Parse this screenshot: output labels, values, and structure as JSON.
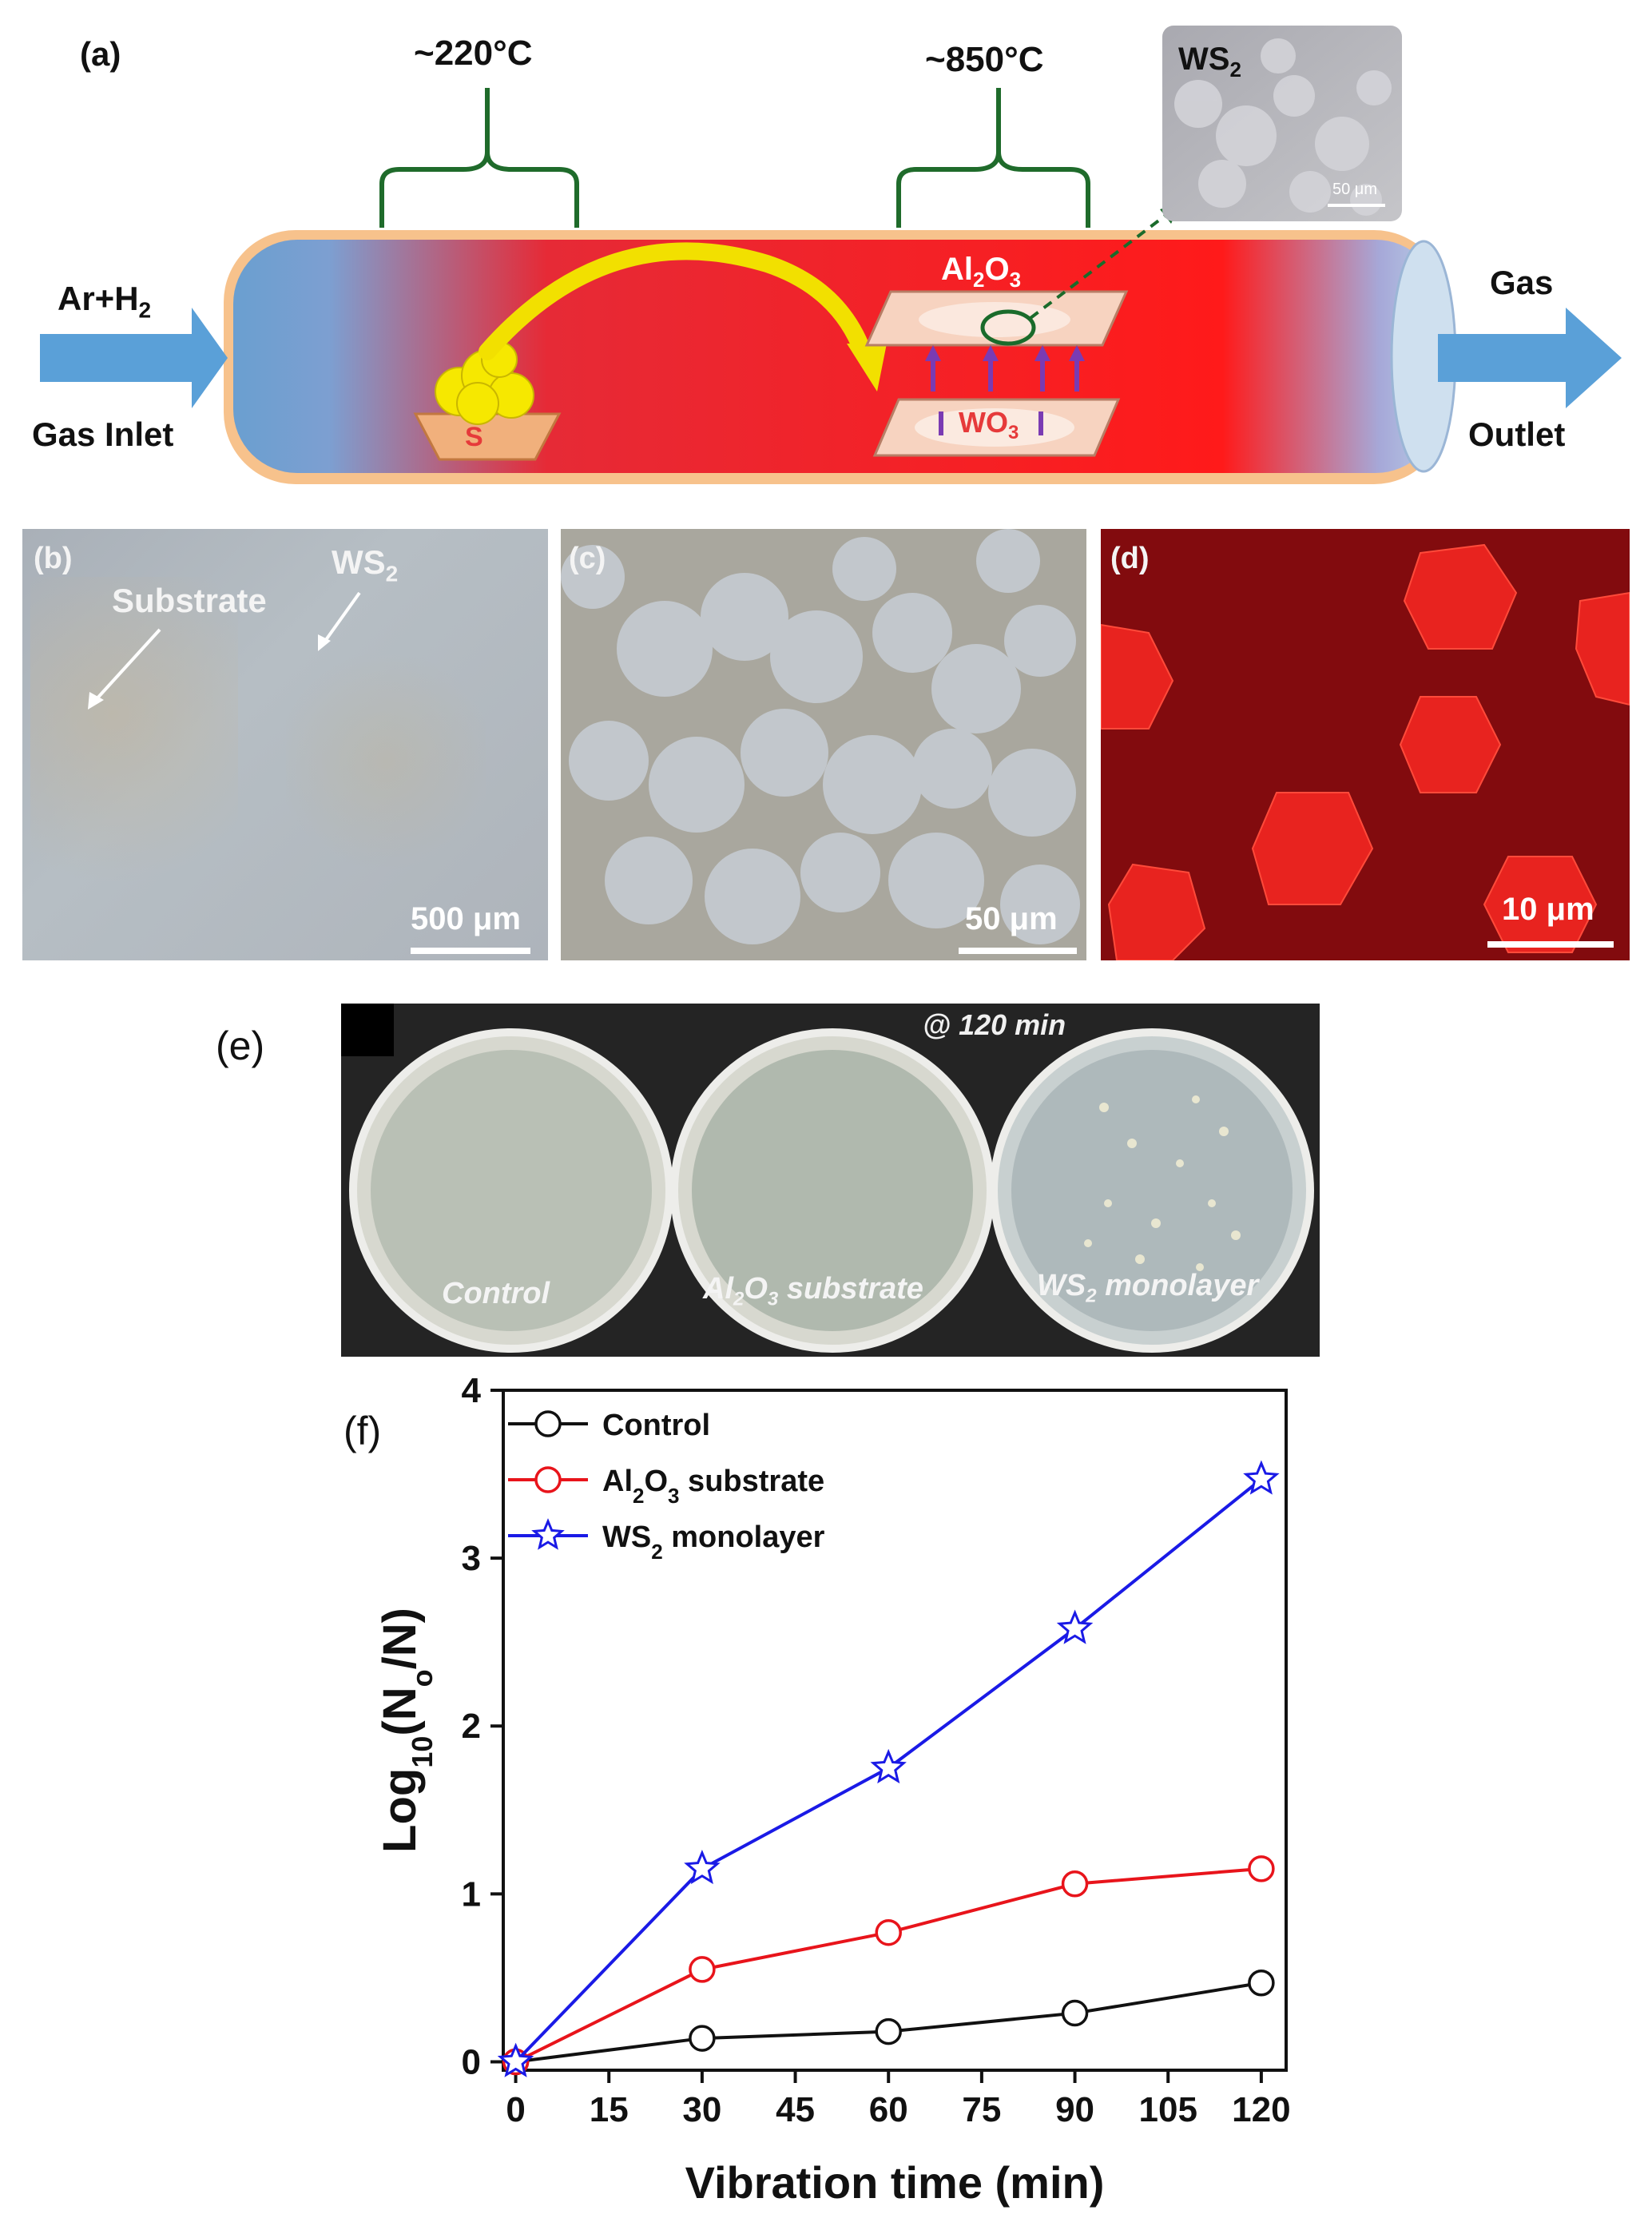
{
  "panel_a": {
    "label": "(a)",
    "temp_left": "~220°C",
    "temp_right": "~850°C",
    "inset_label": "WS",
    "inset_sub": "2",
    "inset_scale": "50 μm",
    "gas_in_top": "Ar+H",
    "gas_in_top_sub": "2",
    "gas_in_bottom": "Gas Inlet",
    "gas_out_top": "Gas",
    "gas_out_bottom": "Outlet",
    "boat_label": "S",
    "top_plate": "Al",
    "top_plate_sub1": "2",
    "top_plate_mid": "O",
    "top_plate_sub2": "3",
    "bottom_plate": "WO",
    "bottom_plate_sub": "3"
  },
  "panel_b": {
    "label": "(b)",
    "substrate": "Substrate",
    "ws2": "WS",
    "ws2_sub": "2",
    "scale": "500 μm"
  },
  "panel_c": {
    "label": "(c)",
    "scale": "50 μm"
  },
  "panel_d": {
    "label": "(d)",
    "scale": "10 μm"
  },
  "panel_e": {
    "label": "(e)",
    "time": "@ 120 min",
    "dish1": "Control",
    "dish2_a": "Al",
    "dish2_sub1": "2",
    "dish2_b": "O",
    "dish2_sub2": "3",
    "dish2_c": " substrate",
    "dish3_a": "WS",
    "dish3_sub": "2",
    "dish3_b": " monolayer"
  },
  "panel_f": {
    "label": "(f)"
  },
  "chart_data": {
    "type": "line",
    "x": [
      0,
      30,
      60,
      90,
      120
    ],
    "xlabel": "Vibration time (min)",
    "ylabel": "Log10(No/N)",
    "xlim": [
      -2,
      124
    ],
    "ylim": [
      -0.05,
      4
    ],
    "xticks": [
      0,
      15,
      30,
      45,
      60,
      75,
      90,
      105,
      120
    ],
    "yticks": [
      0,
      1,
      2,
      3,
      4
    ],
    "legend_position": "top-left",
    "series": [
      {
        "name": "Control",
        "color": "#111111",
        "marker": "circle",
        "values": [
          0,
          0.14,
          0.18,
          0.29,
          0.47
        ]
      },
      {
        "name": "Al2O3 substrate",
        "color": "#e8141b",
        "marker": "circle",
        "values": [
          0,
          0.55,
          0.77,
          1.06,
          1.15
        ]
      },
      {
        "name": "WS2 monolayer",
        "color": "#1a1ae6",
        "marker": "star",
        "values": [
          0,
          1.15,
          1.75,
          2.58,
          3.47
        ]
      }
    ]
  }
}
